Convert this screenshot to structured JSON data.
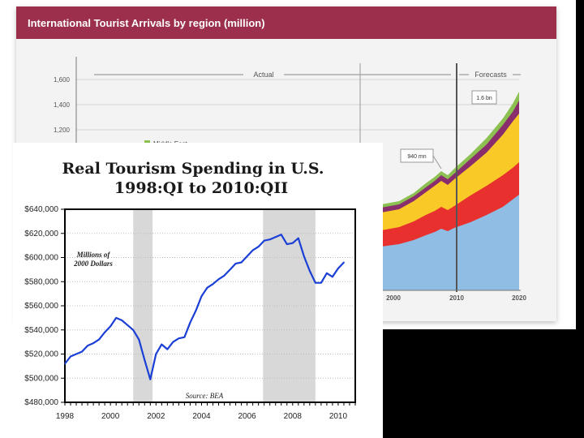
{
  "background_chart": {
    "title": "International Tourist Arrivals by region (million)",
    "labels": {
      "actual": "Actual",
      "forecasts": "Forecasts",
      "callout_940": "940 mn",
      "callout_16bn": "1.6 bn",
      "legend_middle_east": "Middle East"
    },
    "colors": {
      "header": "#9c2f4b",
      "blue": "#8fbde3",
      "red": "#e8312e",
      "yellow": "#f9c928",
      "purple": "#8a2d6d",
      "green": "#8cc050"
    }
  },
  "chart_data": [
    {
      "type": "area",
      "title": "International Tourist Arrivals by region (million)",
      "y_ticks": [
        "1,600",
        "1,400",
        "1,200"
      ],
      "x_ticks": [
        "2000",
        "2010",
        "2020"
      ],
      "legend": [
        "Middle East"
      ],
      "annotations": [
        "Actual",
        "Forecasts",
        "940 mn",
        "1.6 bn"
      ]
    },
    {
      "type": "line",
      "title_line1": "Real Tourism Spending in U.S.",
      "title_line2": "1998:QI to 2010:QII",
      "y_label": "Millions of 2000 Dollars",
      "source": "Source: BEA",
      "y_ticks": [
        "$640,000",
        "$620,000",
        "$600,000",
        "$580,000",
        "$560,000",
        "$540,000",
        "$520,000",
        "$500,000",
        "$480,000"
      ],
      "x_ticks": [
        "1998",
        "2000",
        "2002",
        "2004",
        "2006",
        "2008",
        "2010"
      ],
      "ylim": [
        480000,
        640000
      ],
      "xlim": [
        1998.0,
        2010.75
      ],
      "recessions": [
        [
          2001.0,
          2001.85
        ],
        [
          2006.7,
          2009.0
        ]
      ],
      "x": [
        1998.0,
        1998.25,
        1998.5,
        1998.75,
        1999.0,
        1999.25,
        1999.5,
        1999.75,
        2000.0,
        2000.25,
        2000.5,
        2000.75,
        2001.0,
        2001.25,
        2001.5,
        2001.75,
        2002.0,
        2002.25,
        2002.5,
        2002.75,
        2003.0,
        2003.25,
        2003.5,
        2003.75,
        2004.0,
        2004.25,
        2004.5,
        2004.75,
        2005.0,
        2005.25,
        2005.5,
        2005.75,
        2006.0,
        2006.25,
        2006.5,
        2006.75,
        2007.0,
        2007.25,
        2007.5,
        2007.75,
        2008.0,
        2008.25,
        2008.5,
        2008.75,
        2009.0,
        2009.25,
        2009.5,
        2009.75,
        2010.0,
        2010.25
      ],
      "values": [
        512000,
        518000,
        520000,
        522000,
        527000,
        529000,
        532000,
        538000,
        543000,
        550000,
        548000,
        544000,
        540000,
        532000,
        515000,
        499000,
        520000,
        528000,
        524000,
        530000,
        533000,
        534000,
        546000,
        556000,
        568000,
        575000,
        578000,
        582000,
        585000,
        590000,
        595000,
        596000,
        601000,
        606000,
        609000,
        614000,
        615000,
        617000,
        619000,
        611000,
        612000,
        616000,
        601000,
        589000,
        579000,
        579000,
        587000,
        584000,
        591000,
        596000
      ]
    }
  ]
}
